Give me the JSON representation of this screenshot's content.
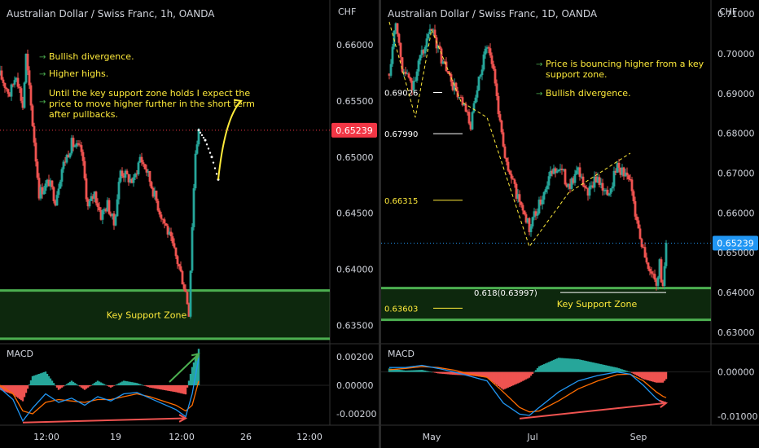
{
  "chart_data": [
    {
      "type": "candlestick",
      "title": "Australian Dollar / Swiss Franc, 1h, OANDA",
      "currency": "CHF",
      "x_ticks": [
        "12:00",
        "19",
        "12:00",
        "26",
        "12:00"
      ],
      "y_ticks": [
        "0.66000",
        "0.65500",
        "0.65000",
        "0.64500",
        "0.64000",
        "0.63500"
      ],
      "ylim": [
        0.6335,
        0.664
      ],
      "last_price": "0.65239",
      "support_zone": {
        "label": "Key Support Zone",
        "range": [
          0.6338,
          0.6381
        ]
      },
      "price_path": [
        [
          0,
          0.6573
        ],
        [
          3,
          0.6556
        ],
        [
          5,
          0.6575
        ],
        [
          7,
          0.6545
        ],
        [
          8,
          0.659
        ],
        [
          10,
          0.653
        ],
        [
          12,
          0.6468
        ],
        [
          15,
          0.6478
        ],
        [
          17,
          0.6462
        ],
        [
          19,
          0.649
        ],
        [
          22,
          0.6512
        ],
        [
          25,
          0.6505
        ],
        [
          27,
          0.6455
        ],
        [
          29,
          0.6468
        ],
        [
          31,
          0.6448
        ],
        [
          33,
          0.6458
        ],
        [
          35,
          0.644
        ],
        [
          37,
          0.6488
        ],
        [
          39,
          0.6482
        ],
        [
          41,
          0.6478
        ],
        [
          43,
          0.65
        ],
        [
          45,
          0.6488
        ],
        [
          47,
          0.647
        ],
        [
          49,
          0.6452
        ],
        [
          51,
          0.6438
        ],
        [
          53,
          0.642
        ],
        [
          55,
          0.6402
        ],
        [
          57,
          0.638
        ],
        [
          58,
          0.6362
        ],
        [
          59,
          0.644
        ],
        [
          60,
          0.6505
        ],
        [
          61,
          0.6524
        ]
      ],
      "projection_dots": [
        [
          61,
          0.6524
        ],
        [
          63,
          0.6515
        ],
        [
          65,
          0.65
        ],
        [
          67,
          0.648
        ]
      ],
      "projection_arrow": [
        [
          67,
          0.648
        ],
        [
          69,
          0.651
        ],
        [
          71,
          0.6535
        ],
        [
          74,
          0.655
        ]
      ],
      "notes": [
        "Bullish divergence.",
        "Higher highs.",
        "Until the key support zone holds I expect the price to move higher further in the short term after pullbacks."
      ],
      "macd": {
        "label": "MACD",
        "y_ticks": [
          "0.00200",
          "0.00000",
          "-0.00200"
        ],
        "ylim": [
          -0.0028,
          0.0028
        ],
        "macd_line": [
          [
            0,
            -0.0002
          ],
          [
            4,
            -0.001
          ],
          [
            7,
            -0.0025
          ],
          [
            10,
            -0.0016
          ],
          [
            14,
            -0.0006
          ],
          [
            18,
            -0.0012
          ],
          [
            22,
            -0.0009
          ],
          [
            26,
            -0.0014
          ],
          [
            30,
            -0.0008
          ],
          [
            34,
            -0.0011
          ],
          [
            38,
            -0.0006
          ],
          [
            42,
            -0.0005
          ],
          [
            46,
            -0.0009
          ],
          [
            50,
            -0.0013
          ],
          [
            54,
            -0.0017
          ],
          [
            57,
            -0.0022
          ],
          [
            59,
            -0.0006
          ],
          [
            61,
            0.0019
          ]
        ],
        "signal_line": [
          [
            0,
            0.0
          ],
          [
            4,
            -0.0006
          ],
          [
            7,
            -0.0018
          ],
          [
            10,
            -0.002
          ],
          [
            14,
            -0.0012
          ],
          [
            18,
            -0.001
          ],
          [
            22,
            -0.0011
          ],
          [
            26,
            -0.0012
          ],
          [
            30,
            -0.001
          ],
          [
            34,
            -0.001
          ],
          [
            38,
            -0.0008
          ],
          [
            42,
            -0.0006
          ],
          [
            46,
            -0.0008
          ],
          [
            50,
            -0.0011
          ],
          [
            54,
            -0.0014
          ],
          [
            57,
            -0.0018
          ],
          [
            59,
            -0.0014
          ],
          [
            61,
            0.0003
          ]
        ],
        "divergence_low": [
          [
            7,
            -0.0025
          ],
          [
            57,
            -0.0022
          ]
        ],
        "histogram_high": [
          [
            57,
            0.0
          ],
          [
            61,
            0.0022
          ]
        ]
      }
    },
    {
      "type": "candlestick",
      "title": "Australian Dollar / Swiss Franc, 1D, OANDA",
      "currency": "CHF",
      "x_ticks": [
        "May",
        "Jul",
        "Sep"
      ],
      "y_ticks": [
        "0.71000",
        "0.70000",
        "0.69000",
        "0.68000",
        "0.67000",
        "0.66000",
        "0.65000",
        "0.64000",
        "0.63000"
      ],
      "ylim": [
        0.6275,
        0.7135
      ],
      "last_price": "0.65239",
      "support_zone": {
        "label": "Key Support Zone",
        "range": [
          0.6331,
          0.6411
        ]
      },
      "fib_levels": [
        {
          "label": "0.69026",
          "value": 0.69026
        },
        {
          "label": "0.67990",
          "value": 0.6799
        },
        {
          "label": "0.66315",
          "value": 0.66315
        },
        {
          "label": "0.618(0.63997)",
          "value": 0.63997
        },
        {
          "label": "0.63603",
          "value": 0.63603
        }
      ],
      "price_path": [
        [
          0,
          0.695
        ],
        [
          2,
          0.709
        ],
        [
          4,
          0.696
        ],
        [
          7,
          0.692
        ],
        [
          10,
          0.7
        ],
        [
          13,
          0.706
        ],
        [
          16,
          0.699
        ],
        [
          19,
          0.693
        ],
        [
          22,
          0.688
        ],
        [
          25,
          0.682
        ],
        [
          28,
          0.695
        ],
        [
          30,
          0.703
        ],
        [
          32,
          0.696
        ],
        [
          34,
          0.683
        ],
        [
          36,
          0.672
        ],
        [
          39,
          0.665
        ],
        [
          41,
          0.661
        ],
        [
          43,
          0.656
        ],
        [
          46,
          0.662
        ],
        [
          49,
          0.669
        ],
        [
          52,
          0.672
        ],
        [
          55,
          0.667
        ],
        [
          58,
          0.67
        ],
        [
          61,
          0.665
        ],
        [
          64,
          0.669
        ],
        [
          67,
          0.664
        ],
        [
          70,
          0.672
        ],
        [
          72,
          0.67
        ],
        [
          74,
          0.668
        ],
        [
          76,
          0.658
        ],
        [
          78,
          0.651
        ],
        [
          80,
          0.645
        ],
        [
          82,
          0.643
        ],
        [
          83,
          0.647
        ],
        [
          84,
          0.641
        ],
        [
          85,
          0.6524
        ]
      ],
      "trend_lines": [
        [
          [
            0,
            0.708
          ],
          [
            8,
            0.684
          ],
          [
            13,
            0.706
          ],
          [
            22,
            0.688
          ],
          [
            30,
            0.684
          ],
          [
            43,
            0.6515
          ],
          [
            55,
            0.665
          ],
          [
            74,
            0.675
          ]
        ]
      ],
      "notes": [
        "Price is bouncing higher from a key support zone.",
        "Bullish divergence."
      ],
      "macd": {
        "label": "MACD",
        "y_ticks": [
          "0.00000",
          "-0.01000"
        ],
        "ylim": [
          -0.012,
          0.006
        ],
        "macd_line": [
          [
            0,
            0.001
          ],
          [
            5,
            0.001
          ],
          [
            10,
            0.0015
          ],
          [
            15,
            0.0008
          ],
          [
            20,
            0.0
          ],
          [
            25,
            -0.001
          ],
          [
            30,
            -0.002
          ],
          [
            35,
            -0.007
          ],
          [
            40,
            -0.0095
          ],
          [
            43,
            -0.0098
          ],
          [
            46,
            -0.008
          ],
          [
            52,
            -0.0045
          ],
          [
            58,
            -0.002
          ],
          [
            64,
            -0.0008
          ],
          [
            70,
            0.0
          ],
          [
            74,
            -0.0005
          ],
          [
            78,
            -0.003
          ],
          [
            82,
            -0.006
          ],
          [
            84,
            -0.007
          ],
          [
            85,
            -0.0068
          ]
        ],
        "signal_line": [
          [
            0,
            0.0005
          ],
          [
            5,
            0.0008
          ],
          [
            10,
            0.0012
          ],
          [
            15,
            0.001
          ],
          [
            20,
            0.0004
          ],
          [
            25,
            -0.0005
          ],
          [
            30,
            -0.0012
          ],
          [
            35,
            -0.0045
          ],
          [
            40,
            -0.008
          ],
          [
            43,
            -0.009
          ],
          [
            46,
            -0.0088
          ],
          [
            52,
            -0.0065
          ],
          [
            58,
            -0.0038
          ],
          [
            64,
            -0.002
          ],
          [
            70,
            -0.0006
          ],
          [
            74,
            -0.0005
          ],
          [
            78,
            -0.002
          ],
          [
            82,
            -0.0045
          ],
          [
            84,
            -0.0055
          ],
          [
            85,
            -0.0058
          ]
        ],
        "divergence_low": [
          [
            40,
            -0.0105
          ],
          [
            85,
            -0.007
          ]
        ]
      }
    }
  ],
  "colors": {
    "bull": "#26a69a",
    "bear": "#ef5350",
    "zone": "#2f8f2f",
    "note": "#ffeb3b",
    "bullet": "#4caf50",
    "price_tag": "#f23645",
    "price_tag_blue": "#2196f3",
    "macd_line": "#2196f3",
    "signal_line": "#ff6d00"
  }
}
